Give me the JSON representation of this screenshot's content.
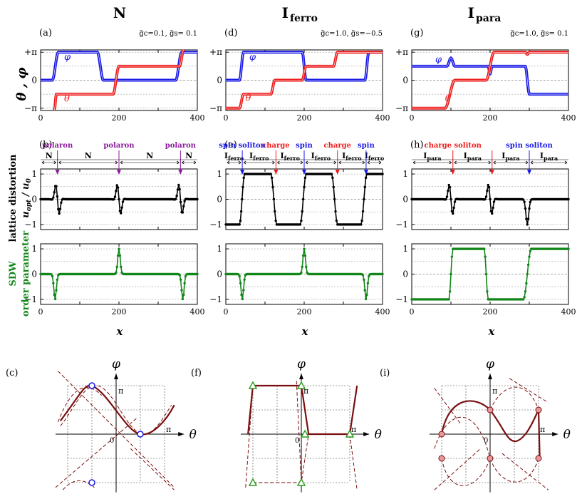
{
  "column_headers": [
    {
      "main": "N",
      "sub": ""
    },
    {
      "main": "I",
      "sub": "ferro"
    },
    {
      "main": "I",
      "sub": "para"
    }
  ],
  "colors": {
    "theta": "#ee1c1c",
    "phi": "#1a1ae6",
    "lattice": "#000000",
    "sdw": "#13861a",
    "polaron": "#8b1a9b",
    "spin": "#1a1ae6",
    "charge": "#ee1c1c",
    "curve": "#7a0f0f",
    "soliton_marker_open": "#1a1ae6",
    "soliton_marker_triangle": "#2a9a1a",
    "soliton_marker_filled": "#e8989a"
  },
  "y_labels": {
    "angle_row": "θ , φ",
    "lattice_line1": "lattice distortion",
    "lattice_line2_main": "u",
    "lattice_line2_sub1": "opt",
    "lattice_line2_mid": " / u",
    "lattice_line2_sub2": "0",
    "sdw_line1": "SDW",
    "sdw_line2": "order parameter"
  },
  "x_label": "x",
  "chart_data": [
    {
      "panel": "a",
      "label": "(a)",
      "type": "line",
      "params": "g̃c=0.1, g̃s= 0.1",
      "x_range": [
        0,
        400
      ],
      "y_range": [
        -3.4,
        3.4
      ],
      "x_ticks": [
        "0",
        "200",
        "400"
      ],
      "y_ticks": [
        "+π",
        "0",
        "−π"
      ],
      "series": [
        {
          "name": "φ",
          "points": [
            [
              0,
              0
            ],
            [
              30,
              0
            ],
            [
              45,
              3.14
            ],
            [
              145,
              3.14
            ],
            [
              160,
              0
            ],
            [
              345,
              0
            ],
            [
              360,
              3.14
            ],
            [
              400,
              3.14
            ]
          ]
        },
        {
          "name": "θ",
          "points": [
            [
              35,
              -3.4
            ],
            [
              40,
              -1.57
            ],
            [
              185,
              -1.57
            ],
            [
              200,
              1.57
            ],
            [
              355,
              1.57
            ],
            [
              365,
              3.4
            ]
          ]
        }
      ]
    },
    {
      "panel": "b",
      "label": "(b)",
      "type": "line",
      "x_range": [
        0,
        400
      ],
      "y_range": [
        -1.2,
        1.2
      ],
      "y_ticks": [
        "1",
        "0",
        "−1"
      ],
      "domains": [
        "N",
        "N",
        "N",
        "N"
      ],
      "markers": [
        {
          "text": "polaron",
          "x": 43
        },
        {
          "text": "polaron",
          "x": 200
        },
        {
          "text": "polaron",
          "x": 357
        }
      ],
      "series": [
        {
          "name": "lattice distortion",
          "kind": "polaron",
          "centers": [
            43,
            200,
            357
          ],
          "amplitude": 0.55
        }
      ]
    },
    {
      "panel": "b2",
      "label": "",
      "type": "line",
      "x_range": [
        0,
        400
      ],
      "y_range": [
        -1.2,
        1.2
      ],
      "x_ticks": [
        "0",
        "200",
        "400"
      ],
      "y_ticks": [
        "1",
        "0",
        "−1"
      ],
      "series": [
        {
          "name": "SDW order parameter",
          "kind": "spikes",
          "spikes": [
            [
              37,
              -1
            ],
            [
              200,
              1
            ],
            [
              363,
              -1
            ]
          ]
        }
      ]
    },
    {
      "panel": "d",
      "label": "(d)",
      "type": "line",
      "params": "g̃c=1.0, g̃s=−0.5",
      "x_range": [
        0,
        400
      ],
      "y_range": [
        -3.4,
        3.4
      ],
      "x_ticks": [
        "0",
        "200",
        "400"
      ],
      "y_ticks": [
        "+π",
        "0",
        "−π"
      ],
      "series": [
        {
          "name": "φ",
          "points": [
            [
              0,
              0
            ],
            [
              35,
              0
            ],
            [
              45,
              3.14
            ],
            [
              195,
              3.14
            ],
            [
              205,
              0
            ],
            [
              355,
              0
            ],
            [
              365,
              3.14
            ],
            [
              400,
              3.14
            ]
          ]
        },
        {
          "name": "θ",
          "points": [
            [
              0,
              -3.14
            ],
            [
              35,
              -3.14
            ],
            [
              45,
              -1.57
            ],
            [
              115,
              -1.57
            ],
            [
              125,
              0
            ],
            [
              195,
              0
            ],
            [
              205,
              1.57
            ],
            [
              275,
              1.57
            ],
            [
              285,
              3.14
            ],
            [
              400,
              3.14
            ]
          ]
        }
      ]
    },
    {
      "panel": "e",
      "label": "(e)",
      "type": "line",
      "x_range": [
        0,
        400
      ],
      "y_range": [
        -1.2,
        1.2
      ],
      "y_ticks": [
        "1",
        "0",
        "−1"
      ],
      "domains": [
        "I_ferro",
        "I_ferro",
        "I_ferro",
        "I_ferro",
        "I_ferro",
        "I_ferro"
      ],
      "markers": [
        {
          "text": "spin soliton",
          "x": 42,
          "kind": "spin"
        },
        {
          "text": "charge",
          "x": 128,
          "kind": "charge"
        },
        {
          "text": "spin",
          "x": 200,
          "kind": "spin"
        },
        {
          "text": "charge",
          "x": 285,
          "kind": "charge"
        },
        {
          "text": "spin",
          "x": 358,
          "kind": "spin"
        }
      ],
      "series": [
        {
          "name": "lattice distortion",
          "kind": "steps",
          "points": [
            [
              0,
              -1
            ],
            [
              35,
              -1
            ],
            [
              48,
              1
            ],
            [
              115,
              1
            ],
            [
              130,
              -1
            ],
            [
              190,
              -1
            ],
            [
              205,
              1
            ],
            [
              270,
              1
            ],
            [
              285,
              -1
            ],
            [
              345,
              -1
            ],
            [
              360,
              1
            ],
            [
              400,
              1
            ]
          ]
        }
      ]
    },
    {
      "panel": "e2",
      "label": "",
      "type": "line",
      "x_range": [
        0,
        400
      ],
      "y_range": [
        -1.2,
        1.2
      ],
      "x_ticks": [
        "0",
        "200",
        "400"
      ],
      "y_ticks": [
        "1",
        "0",
        "−1"
      ],
      "series": [
        {
          "name": "SDW order parameter",
          "kind": "spikes",
          "spikes": [
            [
              42,
              -1
            ],
            [
              200,
              1
            ],
            [
              358,
              -1
            ]
          ]
        }
      ]
    },
    {
      "panel": "g",
      "label": "(g)",
      "type": "line",
      "params": "g̃c=1.0, g̃s= 0.1",
      "x_range": [
        0,
        400
      ],
      "y_range": [
        -3.4,
        3.4
      ],
      "x_ticks": [
        "0",
        "200",
        "400"
      ],
      "y_ticks": [
        "+π",
        "0",
        "−π"
      ],
      "series": [
        {
          "name": "φ",
          "points": [
            [
              0,
              1.57
            ],
            [
              90,
              1.57
            ],
            [
              100,
              2.5
            ],
            [
              110,
              1.57
            ],
            [
              195,
              1.57
            ],
            [
              200,
              0.7
            ],
            [
              205,
              1.57
            ],
            [
              290,
              1.57
            ],
            [
              300,
              -1.57
            ],
            [
              400,
              -1.57
            ]
          ]
        },
        {
          "name": "θ",
          "points": [
            [
              0,
              -3.14
            ],
            [
              85,
              -3.14
            ],
            [
              110,
              0
            ],
            [
              190,
              0
            ],
            [
              210,
              3.14
            ],
            [
              290,
              3.14
            ],
            [
              295,
              2.9
            ],
            [
              300,
              3.14
            ],
            [
              400,
              3.14
            ]
          ]
        }
      ]
    },
    {
      "panel": "h",
      "label": "(h)",
      "type": "line",
      "x_range": [
        0,
        400
      ],
      "y_range": [
        -1.2,
        1.2
      ],
      "y_ticks": [
        "1",
        "0",
        "−1"
      ],
      "domains": [
        "I_para",
        "I_para",
        "I_para",
        "I_para"
      ],
      "markers": [
        {
          "text": "charge soliton",
          "x": 105,
          "kind": "charge"
        },
        {
          "text": "",
          "x": 205,
          "kind": "charge"
        },
        {
          "text": "spin soliton",
          "x": 300,
          "kind": "spin"
        }
      ],
      "series": [
        {
          "name": "lattice distortion",
          "kind": "mixed",
          "polarons": [
            100,
            200
          ],
          "dip": 295
        }
      ]
    },
    {
      "panel": "h2",
      "label": "",
      "type": "line",
      "x_range": [
        0,
        400
      ],
      "y_range": [
        -1.2,
        1.2
      ],
      "x_ticks": [
        "0",
        "200",
        "400"
      ],
      "y_ticks": [
        "1",
        "0",
        "−1"
      ],
      "series": [
        {
          "name": "SDW order parameter",
          "kind": "steps",
          "points": [
            [
              0,
              -1
            ],
            [
              95,
              -1
            ],
            [
              105,
              1
            ],
            [
              185,
              1
            ],
            [
              195,
              -1
            ],
            [
              285,
              -1
            ],
            [
              305,
              1
            ],
            [
              400,
              1
            ]
          ]
        }
      ]
    },
    {
      "panel": "c",
      "label": "(c)",
      "type": "line",
      "x_label": "θ",
      "y_label": "φ",
      "pi_label": "π",
      "zero_label": "0"
    },
    {
      "panel": "f",
      "label": "(f)",
      "type": "line",
      "x_label": "θ",
      "y_label": "φ",
      "pi_label": "π",
      "zero_label": "0"
    },
    {
      "panel": "i",
      "label": "(i)",
      "type": "line",
      "x_label": "θ",
      "y_label": "φ",
      "pi_label": "π",
      "zero_label": "0"
    }
  ]
}
